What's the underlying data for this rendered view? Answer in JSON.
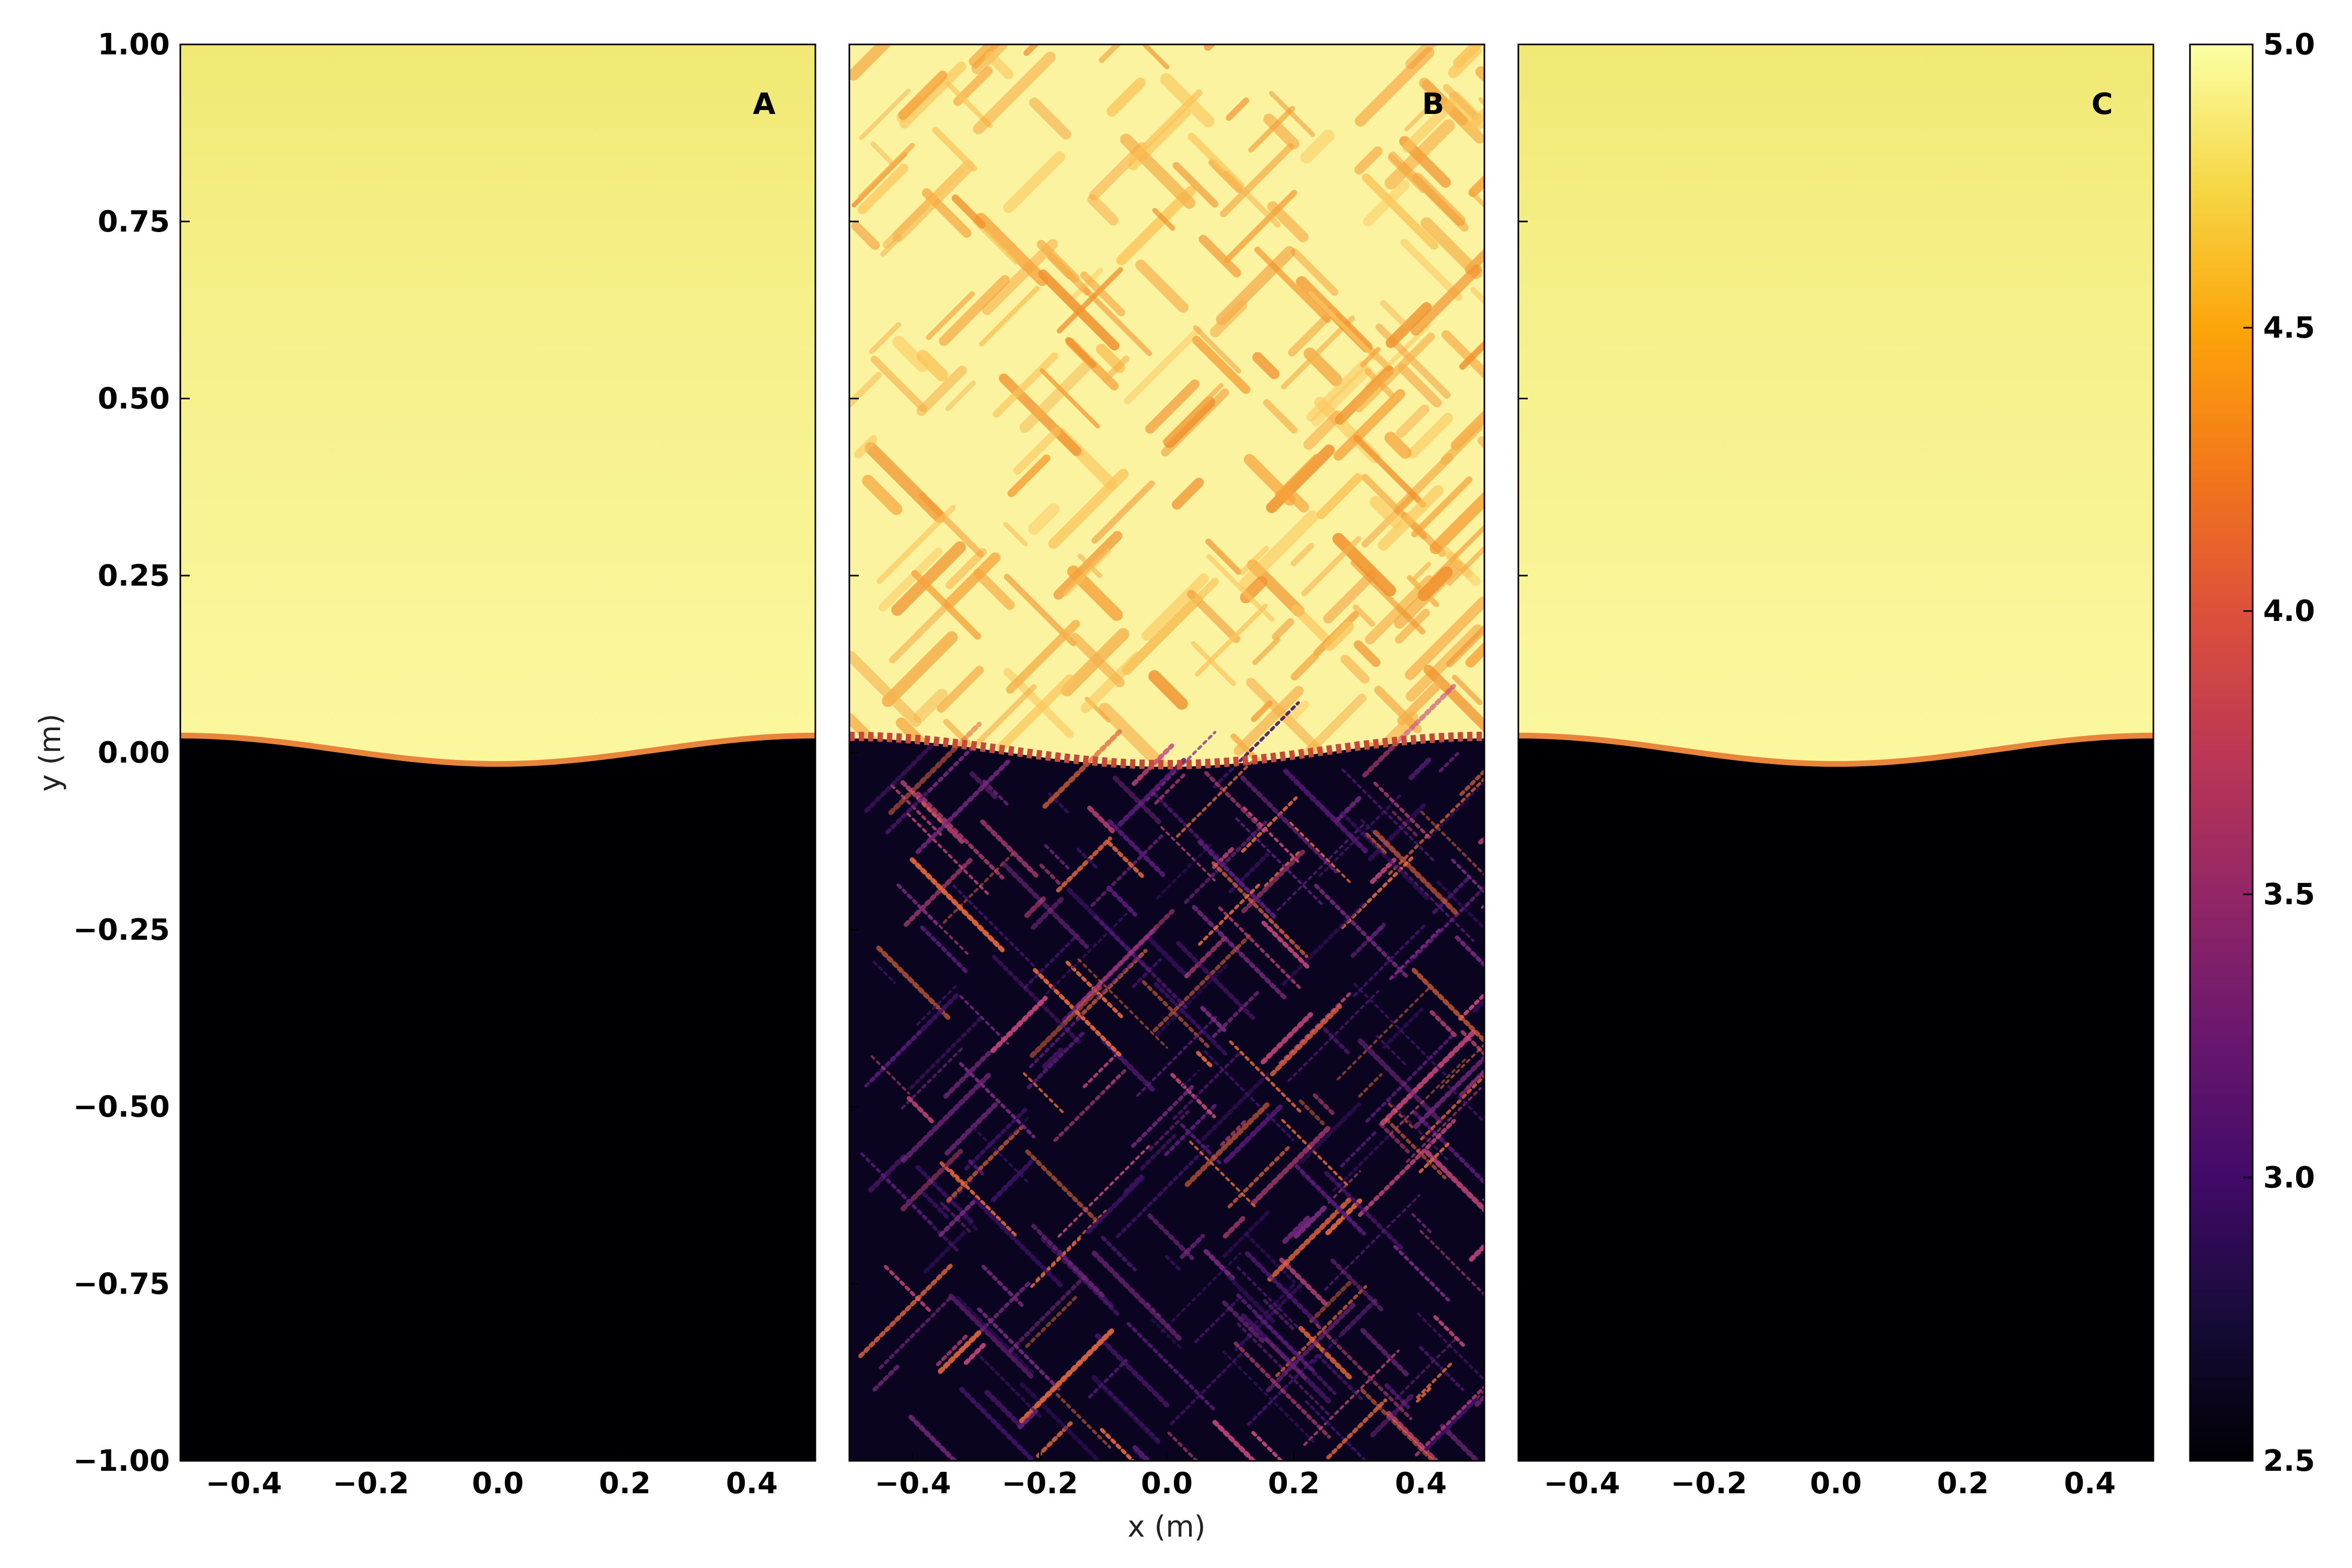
{
  "chart_data": {
    "type": "heatmap",
    "colormap": "inferno",
    "x_label": "x (m)",
    "y_label": "y (m)",
    "xlim": [
      -0.5,
      0.5
    ],
    "ylim": [
      -1.0,
      1.0
    ],
    "x_ticks": [
      "−0.4",
      "−0.2",
      "0.0",
      "0.2",
      "0.4"
    ],
    "x_tick_values": [
      -0.4,
      -0.2,
      0.0,
      0.2,
      0.4
    ],
    "y_ticks": [
      "1.00",
      "0.75",
      "0.50",
      "0.25",
      "0.00",
      "−0.25",
      "−0.50",
      "−0.75",
      "−1.00"
    ],
    "y_tick_values": [
      1.0,
      0.75,
      0.5,
      0.25,
      0.0,
      -0.25,
      -0.5,
      -0.75,
      -1.0
    ],
    "colorbar": {
      "range": [
        2.5,
        5.0
      ],
      "ticks": [
        "5.0",
        "4.5",
        "4.0",
        "3.5",
        "3.0",
        "2.5"
      ],
      "tick_values": [
        5.0,
        4.5,
        4.0,
        3.5,
        3.0,
        2.5
      ]
    },
    "panels": [
      {
        "label": "A",
        "field": "smooth",
        "upper_value": 4.9,
        "lower_value": 2.5,
        "interface_amplitude": 0.02,
        "noisy": false
      },
      {
        "label": "B",
        "field": "noisy",
        "upper_value": 4.85,
        "lower_value": 2.6,
        "interface_amplitude": 0.02,
        "noisy": true
      },
      {
        "label": "C",
        "field": "smooth",
        "upper_value": 4.9,
        "lower_value": 2.5,
        "interface_amplitude": 0.02,
        "noisy": false
      }
    ]
  }
}
